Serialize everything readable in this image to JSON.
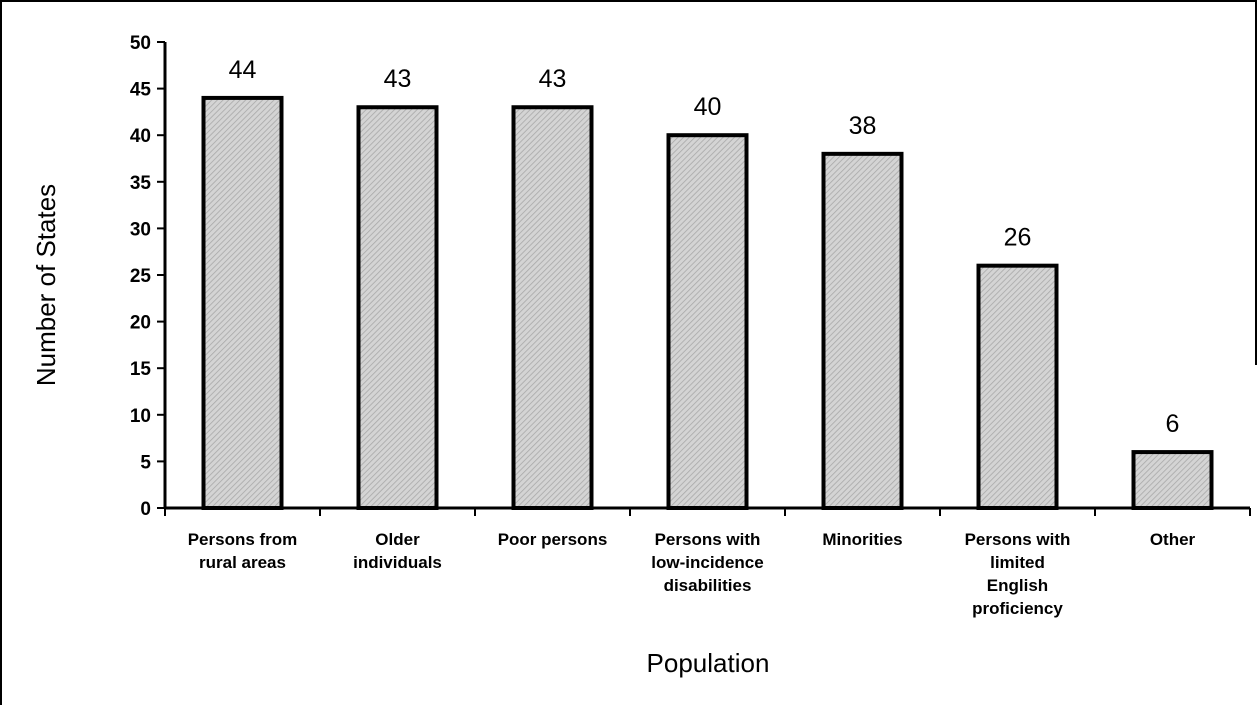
{
  "chart_data": {
    "type": "bar",
    "title": "",
    "xlabel": "Population",
    "ylabel": "Number of States",
    "categories": [
      [
        "Persons from",
        "rural areas"
      ],
      [
        "Older",
        "individuals"
      ],
      [
        "Poor persons"
      ],
      [
        "Persons with",
        "low-incidence",
        "disabilities"
      ],
      [
        "Minorities"
      ],
      [
        "Persons with",
        "limited",
        "English",
        "proficiency"
      ],
      [
        "Other"
      ]
    ],
    "values": [
      44,
      43,
      43,
      40,
      38,
      26,
      6
    ],
    "ylim": [
      0,
      50
    ],
    "yticks": [
      0,
      5,
      10,
      15,
      20,
      25,
      30,
      35,
      40,
      45,
      50
    ],
    "grid": false,
    "legend": "none",
    "bar_color": "#c8c8c8",
    "bar_edge_color": "#000000"
  }
}
